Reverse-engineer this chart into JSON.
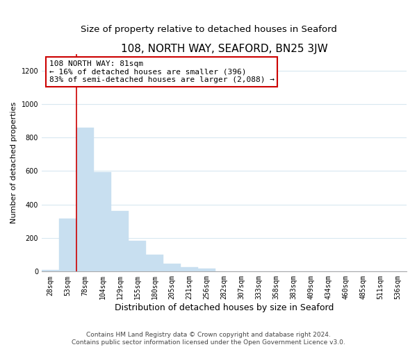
{
  "title": "108, NORTH WAY, SEAFORD, BN25 3JW",
  "subtitle": "Size of property relative to detached houses in Seaford",
  "xlabel": "Distribution of detached houses by size in Seaford",
  "ylabel": "Number of detached properties",
  "bar_values": [
    10,
    315,
    860,
    595,
    360,
    185,
    100,
    45,
    25,
    20,
    0,
    0,
    0,
    0,
    0,
    0,
    0,
    0,
    0,
    0,
    0
  ],
  "categories": [
    "28sqm",
    "53sqm",
    "78sqm",
    "104sqm",
    "129sqm",
    "155sqm",
    "180sqm",
    "205sqm",
    "231sqm",
    "256sqm",
    "282sqm",
    "307sqm",
    "333sqm",
    "358sqm",
    "383sqm",
    "409sqm",
    "434sqm",
    "460sqm",
    "485sqm",
    "511sqm",
    "536sqm"
  ],
  "bar_color": "#c8dff0",
  "bar_edge_color": "#c8dff0",
  "annotation_line1": "108 NORTH WAY: 81sqm",
  "annotation_line2": "← 16% of detached houses are smaller (396)",
  "annotation_line3": "83% of semi-detached houses are larger (2,088) →",
  "annotation_box_edgecolor": "#cc0000",
  "annotation_box_facecolor": "#ffffff",
  "marker_line_color": "#cc0000",
  "ylim": [
    0,
    1300
  ],
  "yticks": [
    0,
    200,
    400,
    600,
    800,
    1000,
    1200
  ],
  "background_color": "#ffffff",
  "grid_color": "#d8e8f0",
  "footer_line1": "Contains HM Land Registry data © Crown copyright and database right 2024.",
  "footer_line2": "Contains public sector information licensed under the Open Government Licence v3.0.",
  "title_fontsize": 11,
  "subtitle_fontsize": 9.5,
  "xlabel_fontsize": 9,
  "ylabel_fontsize": 8,
  "tick_fontsize": 7,
  "annotation_fontsize": 8,
  "footer_fontsize": 6.5
}
